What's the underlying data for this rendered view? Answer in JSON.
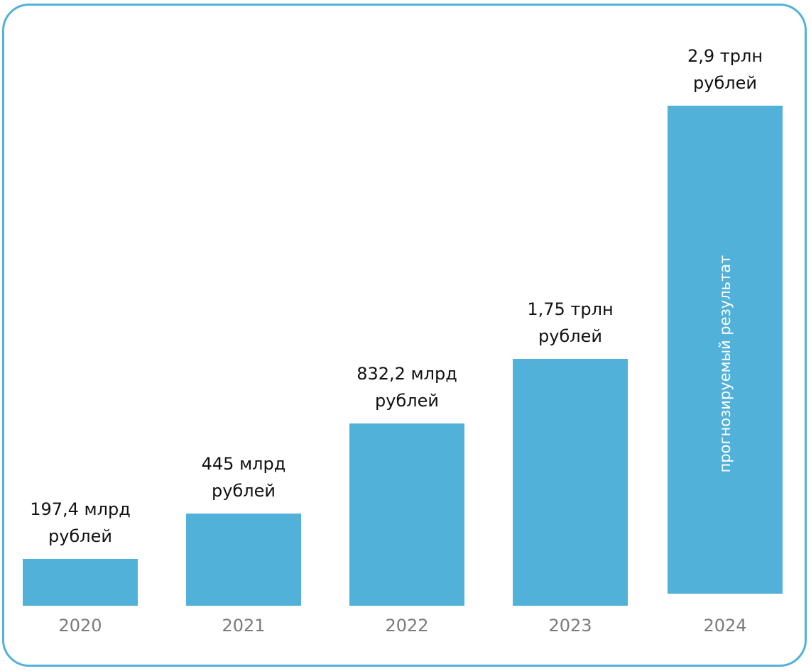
{
  "chart_data": {
    "type": "bar",
    "title": "",
    "xlabel": "",
    "ylabel": "",
    "unit": "рублей",
    "bar_color": "#52b1d9",
    "border_color": "#52b1d9",
    "value_label_color": "#111111",
    "category_label_color": "#7a7a7a",
    "grid": false,
    "legend": "none",
    "categories": [
      "2020",
      "2021",
      "2022",
      "2023",
      "2024"
    ],
    "values_rub_billion": [
      197.4,
      445,
      832.2,
      1750,
      2900
    ],
    "data_labels": [
      [
        "197,4 млрд",
        "рублей"
      ],
      [
        "445 млрд",
        "рублей"
      ],
      [
        "832,2 млрд",
        "рублей"
      ],
      [
        "1,75 трлн",
        "рублей"
      ],
      [
        "2,9 трлн",
        "рублей"
      ]
    ],
    "forecast": [
      false,
      false,
      false,
      false,
      true
    ],
    "forecast_annotation": "прогнозируемый результат"
  }
}
